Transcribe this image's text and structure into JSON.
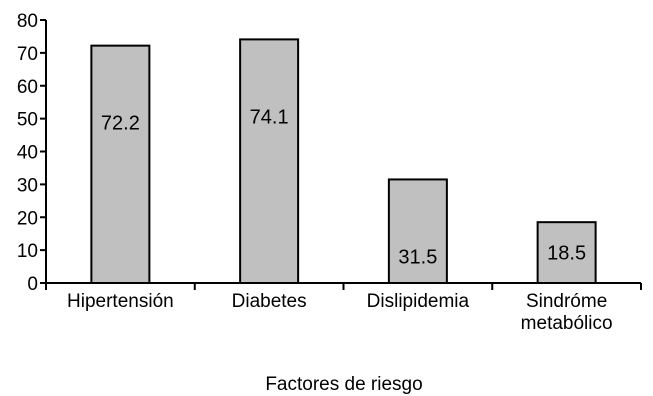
{
  "chart_data": {
    "type": "bar",
    "title": "",
    "xlabel": "Factores de riesgo",
    "ylabel": "",
    "ylim": [
      0,
      80
    ],
    "yticks": [
      0,
      10,
      20,
      30,
      40,
      50,
      60,
      70,
      80
    ],
    "grid": false,
    "categories": [
      [
        "Hipertensión"
      ],
      [
        "Diabetes"
      ],
      [
        "Dislipidemia"
      ],
      [
        "Sindróme",
        "metabólico"
      ]
    ],
    "values": [
      72.2,
      74.1,
      31.5,
      18.5
    ],
    "data_labels": [
      "72.2",
      "74.1",
      "31.5",
      "18.5"
    ],
    "bar_color": "#c0c0c0",
    "edge_color": "#000000"
  }
}
